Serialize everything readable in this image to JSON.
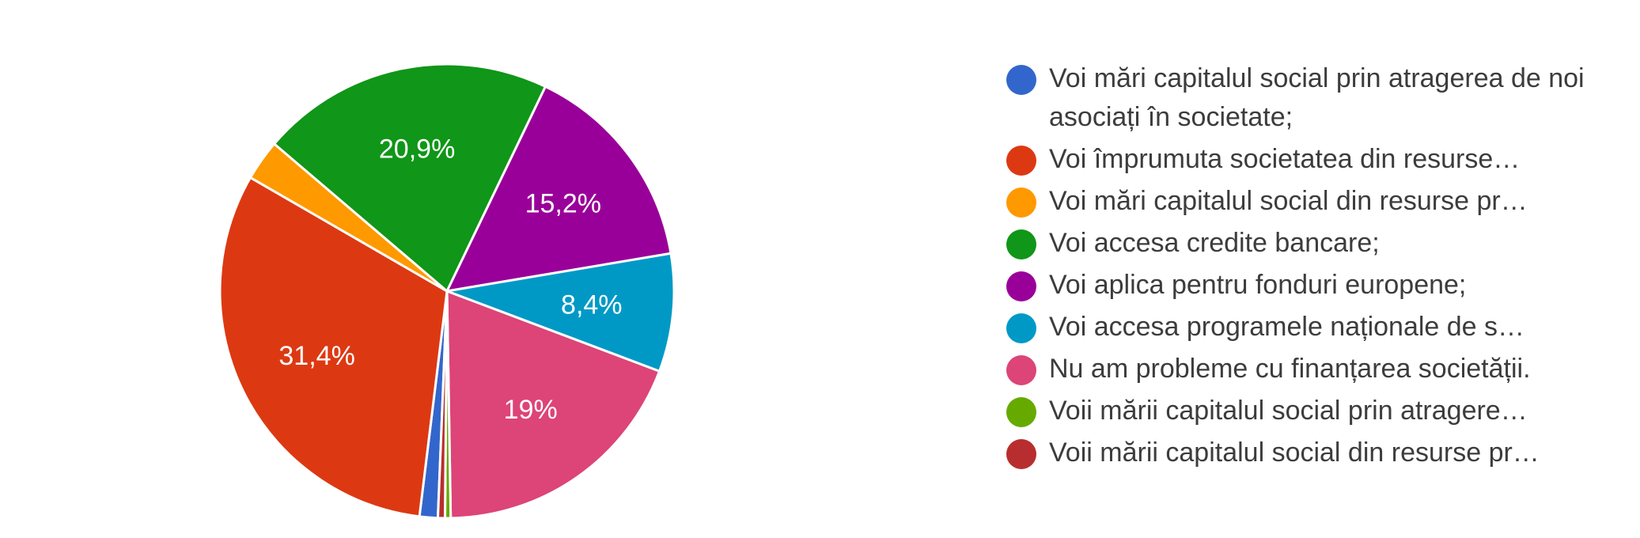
{
  "chart_data": {
    "type": "pie",
    "colors": [
      "#3366cc",
      "#dc3912",
      "#ff9900",
      "#109618",
      "#990099",
      "#0099c6",
      "#dd4477",
      "#66aa00",
      "#b82e2e"
    ],
    "categories": [
      "Voi mări capitalul social prin atragerea de noi asociați în societate;",
      "Voi împrumuta societatea din resurse…",
      "Voi mări capitalul social din resurse pr…",
      "Voi accesa credite bancare;",
      "Voi aplica pentru fonduri europene;",
      "Voi accesa programele naționale de s…",
      "Nu am probleme cu finanțarea societății.",
      "Voii mării capitalul social prin atragere…",
      "Voii mării capitalul social din resurse pr…"
    ],
    "values": [
      1.3,
      31.4,
      2.9,
      20.9,
      15.2,
      8.4,
      19,
      0.4,
      0.5
    ],
    "data_labels": [
      "",
      "31,4%",
      "",
      "20,9%",
      "15,2%",
      "8,4%",
      "19%",
      "",
      ""
    ],
    "start_angle_deg": 92.3,
    "direction": "clockwise",
    "legend_position": "right"
  }
}
